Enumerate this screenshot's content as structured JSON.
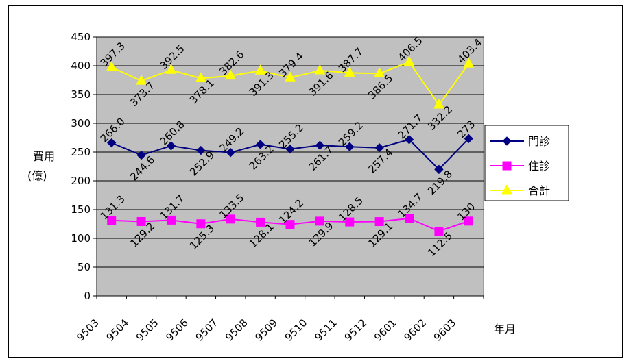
{
  "chart_data": {
    "type": "line",
    "categories": [
      "9503",
      "9504",
      "9505",
      "9506",
      "9507",
      "9508",
      "9509",
      "9510",
      "9511",
      "9512",
      "9601",
      "9602",
      "9603"
    ],
    "series": [
      {
        "name": "門診",
        "color": "#000080",
        "marker": "diamond",
        "values": [
          266.0,
          244.6,
          260.8,
          252.9,
          249.2,
          263.2,
          255.2,
          261.7,
          259.2,
          257.4,
          271.7,
          219.8,
          273.4
        ],
        "labels": [
          "266.0",
          "244.6",
          "260.8",
          "252.9",
          "249.2",
          "263.2",
          "255.2",
          "261.7",
          "259.2",
          "257.4",
          "271.7",
          "219.8",
          "273"
        ]
      },
      {
        "name": "住診",
        "color": "#ff00ff",
        "marker": "square",
        "values": [
          131.3,
          129.2,
          131.7,
          125.3,
          133.5,
          128.1,
          124.2,
          129.9,
          128.5,
          129.1,
          134.7,
          112.5,
          130.0
        ],
        "labels": [
          "131.3",
          "129.2",
          "131.7",
          "125.3",
          "133.5",
          "128.1",
          "124.2",
          "129.9",
          "128.5",
          "129.1",
          "134.7",
          "112.5",
          "130"
        ]
      },
      {
        "name": "合計",
        "color": "#ffff00",
        "marker": "triangle",
        "values": [
          397.3,
          373.7,
          392.5,
          378.1,
          382.6,
          391.3,
          379.4,
          391.6,
          387.7,
          386.5,
          406.5,
          332.2,
          403.4
        ],
        "labels": [
          "397.3",
          "373.7",
          "392.5",
          "378.1",
          "382.6",
          "391.3",
          "379.4",
          "391.6",
          "387.7",
          "386.5",
          "406.5",
          "332.2",
          "403.4"
        ]
      }
    ],
    "ylim": [
      0,
      450
    ],
    "yticks": [
      0,
      50,
      100,
      150,
      200,
      250,
      300,
      350,
      400,
      450
    ],
    "ylabel": "費用\n(億)",
    "ylabel_lines": [
      "費用",
      "(億)"
    ],
    "xlabel": "年月",
    "grid": true,
    "plot_background": "#c0c0c0",
    "legend_position": "right"
  }
}
